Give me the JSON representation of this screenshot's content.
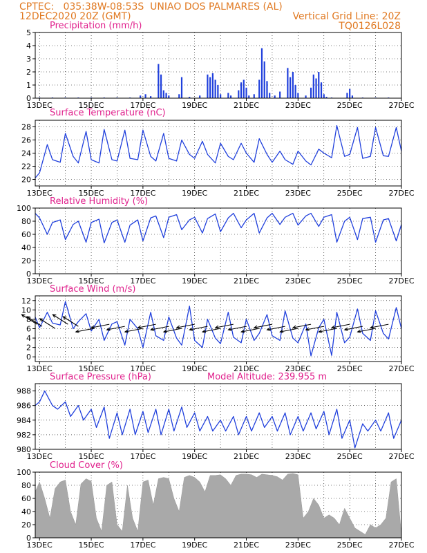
{
  "header": {
    "line1_left": "CPTEC:   035:38W-08:53S  UNIAO DOS PALMARES (AL)",
    "line2_left": "12DEC2020 20Z (GMT)",
    "line2_right": "Vertical Grid Line: 20Z",
    "line3_right": "TQ0126L028"
  },
  "colors": {
    "header": "#e07820",
    "title": "#e0208c",
    "series": "#1f3fdc",
    "cloud": "#a9a9a9"
  },
  "chart_data": [
    {
      "type": "bar",
      "title": "Precipitation (mm/h)",
      "ylim": [
        0,
        5
      ],
      "yticks": [
        "0",
        "1",
        "2",
        "3",
        "4",
        "5"
      ],
      "x_range_days": [
        12.8333,
        27.0
      ],
      "xticks": [
        "13DEC",
        "15DEC",
        "17DEC",
        "19DEC",
        "21DEC",
        "23DEC",
        "25DEC",
        "27DEC"
      ],
      "x": [
        13.0,
        13.5,
        14.0,
        14.5,
        15.0,
        15.5,
        16.0,
        16.5,
        16.9,
        17.1,
        17.3,
        17.6,
        17.7,
        17.8,
        17.9,
        18.0,
        18.4,
        18.5,
        18.8,
        19.2,
        19.5,
        19.6,
        19.7,
        19.8,
        19.9,
        20.0,
        20.3,
        20.4,
        20.7,
        20.8,
        20.9,
        21.0,
        21.1,
        21.3,
        21.5,
        21.6,
        21.7,
        21.8,
        21.9,
        22.1,
        22.3,
        22.6,
        22.7,
        22.8,
        22.9,
        23.0,
        23.3,
        23.5,
        23.6,
        23.7,
        23.8,
        23.9,
        24.0,
        24.1,
        24.3,
        24.9,
        25.0,
        25.1,
        25.5,
        26.0,
        26.5
      ],
      "values": [
        0.05,
        0.05,
        0.05,
        0.05,
        0.05,
        0.05,
        0.05,
        0.05,
        0.2,
        0.3,
        0.15,
        2.6,
        1.8,
        0.6,
        0.4,
        0.2,
        0.3,
        1.6,
        0.1,
        0.2,
        1.8,
        1.6,
        1.9,
        1.4,
        1.0,
        0.3,
        0.4,
        0.2,
        0.6,
        1.2,
        1.4,
        0.8,
        0.2,
        0.3,
        1.4,
        3.8,
        2.8,
        1.3,
        0.4,
        0.2,
        0.5,
        2.3,
        1.6,
        2.0,
        1.0,
        0.4,
        0.2,
        0.8,
        1.8,
        1.5,
        2.0,
        1.2,
        0.3,
        0.1,
        0.05,
        0.4,
        0.7,
        0.2,
        0.05,
        0.05,
        0.05
      ]
    },
    {
      "type": "line",
      "title": "Surface Temperature (nC)",
      "ylim": [
        19,
        29
      ],
      "yticks": [
        "20",
        "22",
        "24",
        "26",
        "28"
      ],
      "x_range_days": [
        12.8333,
        27.0
      ],
      "xticks": [
        "13DEC",
        "15DEC",
        "17DEC",
        "19DEC",
        "21DEC",
        "23DEC",
        "25DEC",
        "27DEC"
      ],
      "x": [
        12.83,
        13.0,
        13.3,
        13.5,
        13.8,
        14.0,
        14.3,
        14.5,
        14.8,
        15.0,
        15.3,
        15.5,
        15.8,
        16.0,
        16.3,
        16.5,
        16.8,
        17.0,
        17.3,
        17.5,
        17.8,
        18.0,
        18.3,
        18.5,
        18.8,
        19.0,
        19.3,
        19.5,
        19.8,
        20.0,
        20.3,
        20.5,
        20.8,
        21.0,
        21.3,
        21.5,
        21.8,
        22.0,
        22.3,
        22.5,
        22.8,
        23.0,
        23.3,
        23.5,
        23.8,
        24.0,
        24.3,
        24.5,
        24.8,
        25.0,
        25.3,
        25.5,
        25.8,
        26.0,
        26.3,
        26.5,
        26.8,
        27.0
      ],
      "values": [
        20.2,
        21.0,
        25.3,
        23.0,
        22.6,
        27.0,
        23.5,
        22.5,
        27.3,
        23.0,
        22.5,
        27.6,
        23.0,
        22.8,
        27.5,
        23.2,
        23.0,
        27.5,
        23.5,
        22.8,
        27.0,
        23.2,
        22.8,
        26.0,
        23.8,
        23.2,
        25.8,
        23.8,
        22.5,
        25.5,
        23.5,
        23.0,
        25.5,
        24.0,
        22.6,
        26.2,
        23.8,
        22.6,
        24.3,
        23.0,
        22.3,
        24.3,
        22.8,
        22.2,
        24.6,
        24.0,
        23.3,
        28.2,
        23.5,
        23.8,
        27.9,
        23.2,
        23.5,
        27.9,
        23.6,
        23.5,
        27.9,
        24.3
      ]
    },
    {
      "type": "line",
      "title": "Relative Humidity (%)",
      "ylim": [
        0,
        100
      ],
      "yticks": [
        "0",
        "20",
        "40",
        "60",
        "80",
        "100"
      ],
      "x_range_days": [
        12.8333,
        27.0
      ],
      "xticks": [
        "13DEC",
        "15DEC",
        "17DEC",
        "19DEC",
        "21DEC",
        "23DEC",
        "25DEC",
        "27DEC"
      ],
      "x": [
        12.83,
        13.0,
        13.3,
        13.5,
        13.8,
        14.0,
        14.3,
        14.5,
        14.8,
        15.0,
        15.3,
        15.5,
        15.8,
        16.0,
        16.3,
        16.5,
        16.8,
        17.0,
        17.3,
        17.5,
        17.8,
        18.0,
        18.3,
        18.5,
        18.8,
        19.0,
        19.3,
        19.5,
        19.8,
        20.0,
        20.3,
        20.5,
        20.8,
        21.0,
        21.3,
        21.5,
        21.8,
        22.0,
        22.3,
        22.5,
        22.8,
        23.0,
        23.3,
        23.5,
        23.8,
        24.0,
        24.3,
        24.5,
        24.8,
        25.0,
        25.3,
        25.5,
        25.8,
        26.0,
        26.3,
        26.5,
        26.8,
        27.0
      ],
      "values": [
        92,
        85,
        60,
        78,
        82,
        52,
        75,
        80,
        48,
        78,
        83,
        47,
        78,
        82,
        48,
        74,
        82,
        50,
        85,
        88,
        55,
        86,
        90,
        67,
        82,
        86,
        62,
        84,
        91,
        64,
        85,
        92,
        70,
        82,
        92,
        62,
        85,
        92,
        75,
        86,
        92,
        74,
        88,
        92,
        72,
        86,
        90,
        48,
        80,
        86,
        52,
        84,
        86,
        48,
        82,
        84,
        50,
        75
      ]
    },
    {
      "type": "line",
      "title": "Surface Wind (m/s)",
      "ylim": [
        -1,
        13
      ],
      "yticks": [
        "0",
        "2",
        "4",
        "6",
        "8",
        "10",
        "12"
      ],
      "x_range_days": [
        12.8333,
        27.0
      ],
      "xticks": [
        "13DEC",
        "15DEC",
        "17DEC",
        "19DEC",
        "21DEC",
        "23DEC",
        "25DEC",
        "27DEC"
      ],
      "x": [
        12.83,
        13.0,
        13.3,
        13.5,
        13.8,
        14.0,
        14.3,
        14.5,
        14.8,
        15.0,
        15.3,
        15.5,
        15.8,
        16.0,
        16.3,
        16.5,
        16.8,
        17.0,
        17.3,
        17.5,
        17.8,
        18.0,
        18.3,
        18.5,
        18.8,
        19.0,
        19.3,
        19.5,
        19.8,
        20.0,
        20.3,
        20.5,
        20.8,
        21.0,
        21.3,
        21.5,
        21.8,
        22.0,
        22.3,
        22.5,
        22.8,
        23.0,
        23.3,
        23.5,
        23.8,
        24.0,
        24.3,
        24.5,
        24.8,
        25.0,
        25.3,
        25.5,
        25.8,
        26.0,
        26.3,
        26.5,
        26.8,
        27.0
      ],
      "values": [
        8.5,
        6.2,
        9.5,
        7.2,
        6.8,
        11.8,
        6.0,
        7.5,
        9.2,
        5.5,
        8.0,
        3.5,
        7.0,
        7.5,
        2.5,
        8.0,
        6.0,
        2.0,
        9.5,
        4.5,
        3.5,
        8.5,
        4.0,
        2.5,
        10.8,
        3.5,
        2.0,
        8.0,
        4.0,
        2.8,
        9.5,
        4.2,
        3.0,
        8.0,
        3.5,
        5.0,
        9.0,
        4.5,
        3.5,
        9.8,
        4.0,
        3.0,
        7.0,
        0.2,
        6.2,
        8.0,
        0.3,
        9.5,
        3.0,
        4.2,
        10.2,
        5.0,
        3.5,
        9.8,
        5.0,
        3.8,
        10.5,
        6.0
      ],
      "arrows_x": [
        12.9,
        13.1,
        13.6,
        14.1,
        14.5,
        15.1,
        15.7,
        16.3,
        17.0,
        17.5,
        18.0,
        18.5,
        19.0,
        19.5,
        20.0,
        20.5,
        21.0,
        21.5,
        22.0,
        22.5,
        23.0,
        23.5,
        24.0,
        24.5,
        25.0,
        25.5,
        26.0,
        26.5
      ]
    },
    {
      "type": "line",
      "title": "Surface Pressure (hPa)",
      "annotation": "Model Altitude: 239.955 m",
      "ylim": [
        980,
        989
      ],
      "yticks": [
        "980",
        "982",
        "984",
        "986",
        "988"
      ],
      "x_range_days": [
        12.8333,
        27.0
      ],
      "xticks": [
        "13DEC",
        "15DEC",
        "17DEC",
        "19DEC",
        "21DEC",
        "23DEC",
        "25DEC",
        "27DEC"
      ],
      "x": [
        12.83,
        13.0,
        13.2,
        13.5,
        13.7,
        14.0,
        14.2,
        14.5,
        14.7,
        15.0,
        15.2,
        15.5,
        15.7,
        16.0,
        16.2,
        16.5,
        16.7,
        17.0,
        17.2,
        17.5,
        17.7,
        18.0,
        18.2,
        18.5,
        18.7,
        19.0,
        19.2,
        19.5,
        19.7,
        20.0,
        20.2,
        20.5,
        20.7,
        21.0,
        21.2,
        21.5,
        21.7,
        22.0,
        22.2,
        22.5,
        22.7,
        23.0,
        23.2,
        23.5,
        23.7,
        24.0,
        24.2,
        24.5,
        24.7,
        25.0,
        25.2,
        25.5,
        25.7,
        26.0,
        26.2,
        26.5,
        26.7,
        27.0
      ],
      "values": [
        986.0,
        986.5,
        988.0,
        986.0,
        985.5,
        986.5,
        984.5,
        986.0,
        984.0,
        985.5,
        983.0,
        985.8,
        981.5,
        985.0,
        982.0,
        985.5,
        982.0,
        985.2,
        982.3,
        985.5,
        982.0,
        985.5,
        982.5,
        985.8,
        983.0,
        985.0,
        982.5,
        984.5,
        982.5,
        984.0,
        982.5,
        984.5,
        982.0,
        984.5,
        982.5,
        985.0,
        983.0,
        984.5,
        982.5,
        985.0,
        982.0,
        984.5,
        982.5,
        985.0,
        982.8,
        985.2,
        982.0,
        985.5,
        981.5,
        984.0,
        980.2,
        983.5,
        982.5,
        984.0,
        982.5,
        985.0,
        981.5,
        984.0
      ]
    },
    {
      "type": "area",
      "title": "Cloud Cover (%)",
      "ylim": [
        0,
        100
      ],
      "yticks": [
        "0",
        "20",
        "40",
        "60",
        "80",
        "100"
      ],
      "x_range_days": [
        12.8333,
        27.0
      ],
      "xticks": [
        "13DEC",
        "15DEC",
        "17DEC",
        "19DEC",
        "21DEC",
        "23DEC",
        "25DEC",
        "27DEC"
      ],
      "x": [
        12.83,
        13.0,
        13.2,
        13.4,
        13.6,
        13.8,
        14.0,
        14.2,
        14.4,
        14.6,
        14.8,
        15.0,
        15.2,
        15.4,
        15.6,
        15.8,
        16.0,
        16.2,
        16.4,
        16.6,
        16.8,
        17.0,
        17.2,
        17.4,
        17.6,
        17.8,
        18.0,
        18.2,
        18.4,
        18.6,
        18.8,
        19.0,
        19.2,
        19.4,
        19.6,
        19.8,
        20.0,
        20.2,
        20.4,
        20.6,
        20.8,
        21.0,
        21.2,
        21.4,
        21.6,
        21.8,
        22.0,
        22.2,
        22.4,
        22.6,
        22.8,
        23.0,
        23.2,
        23.4,
        23.6,
        23.8,
        24.0,
        24.2,
        24.4,
        24.6,
        24.8,
        25.0,
        25.2,
        25.4,
        25.6,
        25.8,
        26.0,
        26.2,
        26.4,
        26.6,
        26.8,
        27.0
      ],
      "values": [
        70,
        85,
        60,
        30,
        75,
        85,
        88,
        40,
        20,
        82,
        90,
        86,
        30,
        10,
        80,
        85,
        20,
        10,
        80,
        30,
        10,
        85,
        88,
        50,
        90,
        92,
        90,
        60,
        40,
        92,
        95,
        92,
        85,
        70,
        95,
        95,
        96,
        90,
        80,
        95,
        97,
        97,
        96,
        92,
        97,
        96,
        95,
        93,
        88,
        97,
        98,
        96,
        30,
        40,
        60,
        50,
        30,
        35,
        30,
        20,
        45,
        30,
        15,
        10,
        5,
        20,
        15,
        20,
        30,
        85,
        90,
        5
      ]
    }
  ]
}
